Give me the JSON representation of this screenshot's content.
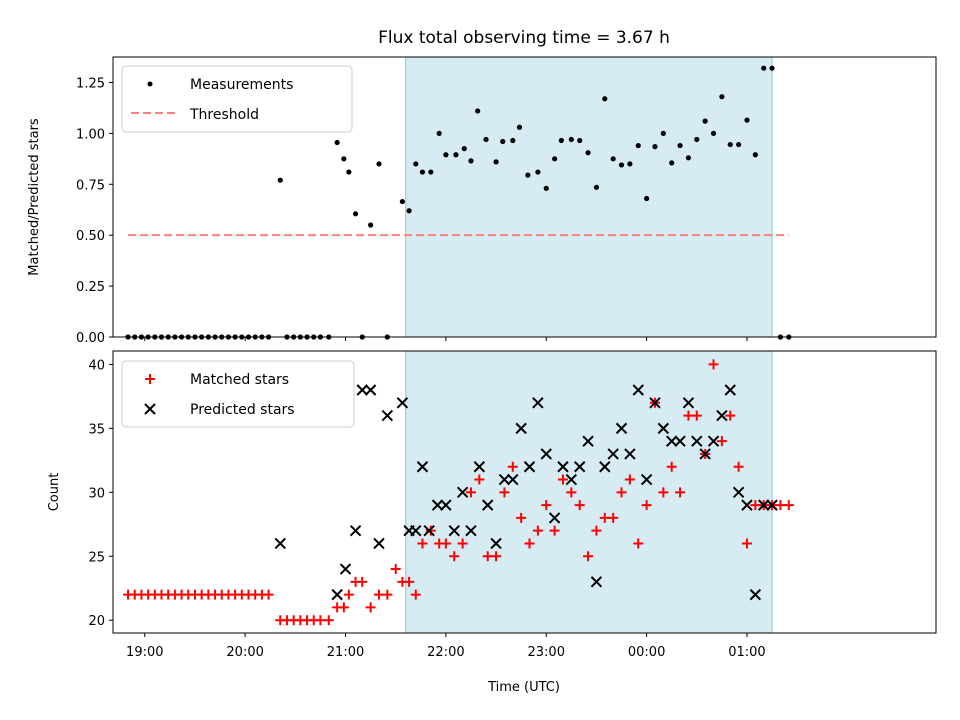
{
  "title": "Flux total observing time = 3.67 h",
  "colors": {
    "shade": "#add8e6",
    "measure": "#000000",
    "threshold": "#ff7f7f",
    "matched": "#ff0000",
    "predicted": "#000000"
  },
  "chart_data": [
    {
      "type": "scatter",
      "ylabel": "Matched/Predicted stars",
      "xlim": [
        18.6833,
        26.8833
      ],
      "ylim": [
        0,
        1.375
      ],
      "yticks": [
        0,
        0.25,
        0.5,
        0.75,
        1.0,
        1.25
      ],
      "ytick_labels": [
        "0.00",
        "0.25",
        "0.50",
        "0.75",
        "1.00",
        "1.25"
      ],
      "xticks": [
        19,
        20,
        21,
        22,
        23,
        24,
        25
      ],
      "shaded_region": [
        21.6,
        25.25
      ],
      "legend": {
        "position": "top-left",
        "entries": [
          "Measurements",
          "Threshold"
        ]
      },
      "series": [
        {
          "name": "Measurements",
          "marker": "dot",
          "x": [
            18.8333,
            18.9,
            18.9667,
            19.0333,
            19.1,
            19.1667,
            19.2333,
            19.3,
            19.3667,
            19.4333,
            19.5,
            19.5667,
            19.6333,
            19.7,
            19.7667,
            19.8333,
            19.9,
            19.9667,
            20.0333,
            20.1,
            20.1667,
            20.2333,
            20.35,
            20.4167,
            20.4833,
            20.55,
            20.6167,
            20.6833,
            20.75,
            20.8333,
            20.9167,
            20.9833,
            21.0333,
            21.1,
            21.1667,
            21.25,
            21.3333,
            21.4167,
            21.5667,
            21.6333,
            21.7,
            21.7667,
            21.85,
            21.9333,
            22.0,
            22.1,
            22.1833,
            22.25,
            22.3167,
            22.4,
            22.5,
            22.5667,
            22.6667,
            22.7333,
            22.8167,
            22.9167,
            23.0,
            23.0833,
            23.15,
            23.25,
            23.3333,
            23.4167,
            23.5,
            23.5833,
            23.6667,
            23.75,
            23.8333,
            23.9167,
            24.0,
            24.0833,
            24.1667,
            24.25,
            24.3333,
            24.4167,
            24.5,
            24.5833,
            24.6667,
            24.75,
            24.8333,
            24.9167,
            25.0,
            25.0833,
            25.1667,
            25.25,
            25.3333,
            25.4167
          ],
          "y": [
            0,
            0,
            0,
            0,
            0,
            0,
            0,
            0,
            0,
            0,
            0,
            0,
            0,
            0,
            0,
            0,
            0,
            0,
            0,
            0,
            0,
            0,
            0.77,
            0,
            0,
            0,
            0,
            0,
            0,
            0,
            0.955,
            0.875,
            0.81,
            0.605,
            0,
            0.55,
            0.85,
            0,
            0.665,
            0.62,
            0.85,
            0.81,
            0.81,
            1.0,
            0.895,
            0.895,
            0.925,
            0.865,
            1.11,
            0.97,
            0.86,
            0.96,
            0.965,
            1.03,
            0.795,
            0.81,
            0.73,
            0.875,
            0.965,
            0.97,
            0.965,
            0.905,
            0.735,
            1.17,
            0.875,
            0.845,
            0.85,
            0.94,
            0.68,
            0.935,
            1.0,
            0.855,
            0.94,
            0.88,
            0.97,
            1.06,
            1.0,
            1.18,
            0.945,
            0.945,
            1.065,
            0.895,
            1.32,
            1.32,
            0,
            0
          ]
        },
        {
          "name": "Threshold",
          "style": "dashed",
          "x": [
            18.8333,
            25.4167
          ],
          "y": [
            0.5,
            0.5
          ]
        }
      ]
    },
    {
      "type": "scatter",
      "xlabel": "Time (UTC)",
      "ylabel": "Count",
      "xlim": [
        18.6833,
        26.8833
      ],
      "ylim": [
        19.0,
        41.05
      ],
      "yticks": [
        20,
        25,
        30,
        35,
        40
      ],
      "ytick_labels": [
        "20",
        "25",
        "30",
        "35",
        "40"
      ],
      "xticks": [
        19,
        20,
        21,
        22,
        23,
        24,
        25
      ],
      "xtick_labels": [
        "19:00",
        "20:00",
        "21:00",
        "22:00",
        "23:00",
        "00:00",
        "01:00"
      ],
      "shaded_region": [
        21.6,
        25.25
      ],
      "legend": {
        "position": "top-left",
        "entries": [
          "Matched stars",
          "Predicted stars"
        ]
      },
      "series": [
        {
          "name": "Matched stars",
          "marker": "plus",
          "x": [
            18.8333,
            18.9,
            18.9667,
            19.0333,
            19.1,
            19.1667,
            19.2333,
            19.3,
            19.3667,
            19.4333,
            19.5,
            19.5667,
            19.6333,
            19.7,
            19.7667,
            19.8333,
            19.9,
            19.9667,
            20.0333,
            20.1,
            20.1667,
            20.2333,
            20.35,
            20.4167,
            20.4833,
            20.55,
            20.6167,
            20.6833,
            20.75,
            20.8333,
            20.9167,
            20.9833,
            21.0333,
            21.1,
            21.1667,
            21.25,
            21.3333,
            21.4167,
            21.5,
            21.5667,
            21.6333,
            21.7,
            21.7667,
            21.85,
            21.9333,
            22.0,
            22.0833,
            22.1667,
            22.25,
            22.3333,
            22.4167,
            22.5,
            22.5833,
            22.6667,
            22.75,
            22.8333,
            22.9167,
            23.0,
            23.0833,
            23.1667,
            23.25,
            23.3333,
            23.4167,
            23.5,
            23.5833,
            23.6667,
            23.75,
            23.8333,
            23.9167,
            24.0,
            24.0833,
            24.1667,
            24.25,
            24.3333,
            24.4167,
            24.5,
            24.5833,
            24.6667,
            24.75,
            24.8333,
            24.9167,
            25.0,
            25.0833,
            25.1667,
            25.25,
            25.3333,
            25.4167
          ],
          "y": [
            22,
            22,
            22,
            22,
            22,
            22,
            22,
            22,
            22,
            22,
            22,
            22,
            22,
            22,
            22,
            22,
            22,
            22,
            22,
            22,
            22,
            22,
            20,
            20,
            20,
            20,
            20,
            20,
            20,
            20,
            21,
            21,
            22,
            23,
            23,
            21,
            22,
            22,
            24,
            23,
            23,
            22,
            26,
            27,
            26,
            26,
            25,
            26,
            30,
            31,
            25,
            25,
            30,
            32,
            28,
            26,
            27,
            29,
            27,
            31,
            30,
            29,
            25,
            27,
            28,
            28,
            30,
            31,
            26,
            29,
            37,
            30,
            32,
            30,
            36,
            36,
            33,
            40,
            34,
            36,
            32,
            26,
            29,
            29,
            29,
            29,
            29
          ]
        },
        {
          "name": "Predicted stars",
          "marker": "x",
          "x": [
            20.35,
            20.9167,
            21.0,
            21.1,
            21.1667,
            21.25,
            21.3333,
            21.4167,
            21.5667,
            21.6333,
            21.7,
            21.7667,
            21.8333,
            21.9167,
            22.0,
            22.0833,
            22.1667,
            22.25,
            22.3333,
            22.4167,
            22.5,
            22.5833,
            22.6667,
            22.75,
            22.8333,
            22.9167,
            23.0,
            23.0833,
            23.1667,
            23.25,
            23.3333,
            23.4167,
            23.5,
            23.5833,
            23.6667,
            23.75,
            23.8333,
            23.9167,
            24.0,
            24.0833,
            24.1667,
            24.25,
            24.3333,
            24.4167,
            24.5,
            24.5833,
            24.6667,
            24.75,
            24.8333,
            24.9167,
            25.0,
            25.0833,
            25.1667,
            25.25
          ],
          "y": [
            26,
            22,
            24,
            27,
            38,
            38,
            26,
            36,
            37,
            27,
            27,
            32,
            27,
            29,
            29,
            27,
            30,
            27,
            32,
            29,
            26,
            31,
            31,
            35,
            32,
            37,
            33,
            28,
            32,
            31,
            32,
            34,
            23,
            32,
            33,
            35,
            33,
            38,
            31,
            37,
            35,
            34,
            34,
            37,
            34,
            33,
            34,
            36,
            38,
            30,
            29,
            22,
            29,
            29
          ]
        }
      ]
    }
  ]
}
